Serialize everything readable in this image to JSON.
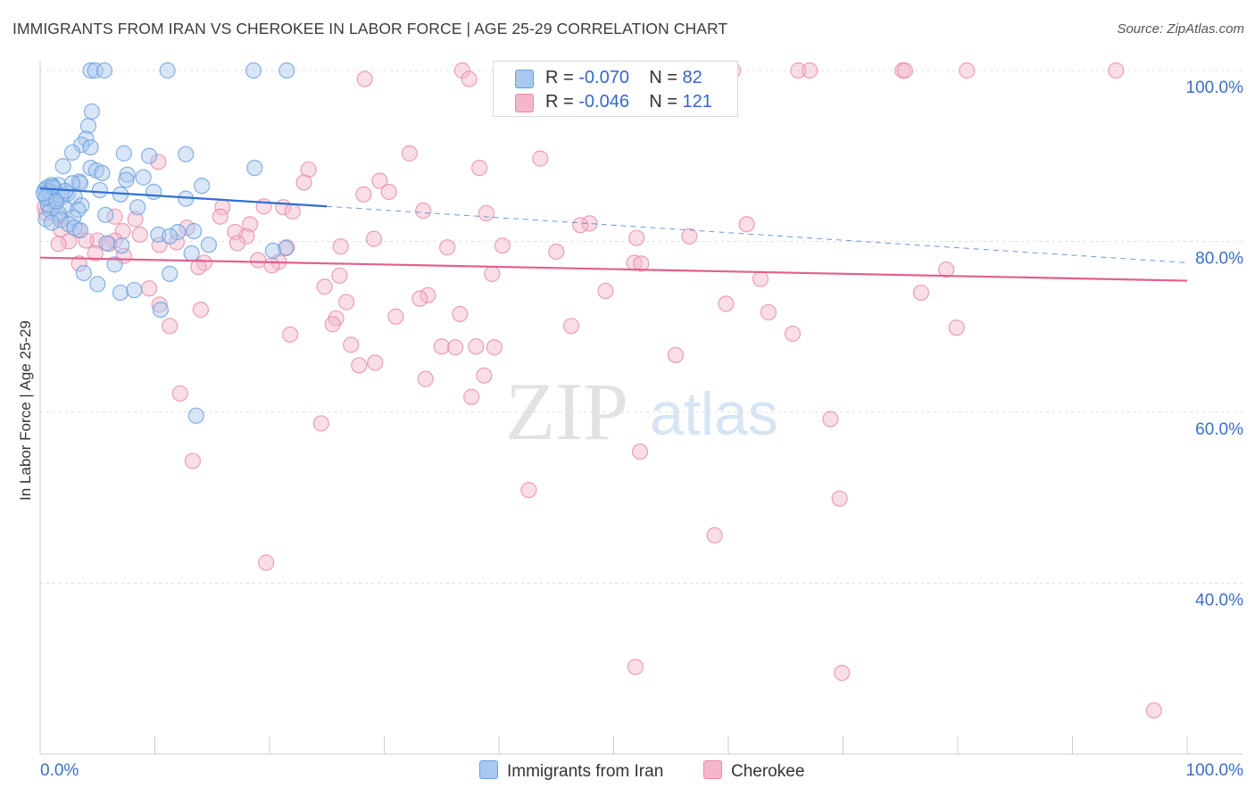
{
  "title": "IMMIGRANTS FROM IRAN VS CHEROKEE IN LABOR FORCE | AGE 25-29 CORRELATION CHART",
  "source": "Source: ZipAtlas.com",
  "watermark": {
    "zip": "ZIP",
    "atlas": "atlas"
  },
  "legend": {
    "series1": {
      "r_label": "R = ",
      "r_value": "-0.070",
      "n_label": "N = ",
      "n_value": "82"
    },
    "series2": {
      "r_label": "R = ",
      "r_value": "-0.046",
      "n_label": "N = ",
      "n_value": "121"
    }
  },
  "bottom_legend": {
    "series1": "Immigrants from Iran",
    "series2": "Cherokee"
  },
  "colors": {
    "blue_fill": "#a8c8f0",
    "blue_stroke": "#6a9fdc",
    "blue_line": "#2f6fcf",
    "pink_fill": "#f5b6c9",
    "pink_stroke": "#e78aa8",
    "pink_line": "#e2608f",
    "axis_label": "#3a6fc8",
    "grid": "#dcdcdc"
  },
  "chart_data": {
    "type": "scatter",
    "title": "IMMIGRANTS FROM IRAN VS CHEROKEE IN LABOR FORCE | AGE 25-29 CORRELATION CHART",
    "xlabel": "",
    "ylabel": "In Labor Force | Age 25-29",
    "xlim": [
      0,
      100
    ],
    "ylim": [
      20,
      103
    ],
    "x_tick_labels": [
      {
        "value": 0,
        "label": "0.0%"
      },
      {
        "value": 100,
        "label": "100.0%"
      }
    ],
    "y_tick_labels": [
      {
        "value": 100,
        "label": "100.0%"
      },
      {
        "value": 80,
        "label": "80.0%"
      },
      {
        "value": 60,
        "label": "60.0%"
      },
      {
        "value": 40,
        "label": "40.0%"
      }
    ],
    "series": [
      {
        "name": "Immigrants from Iran",
        "color": "#a8c8f0",
        "trend": {
          "x": [
            0,
            25
          ],
          "y": [
            86.2,
            84.1
          ],
          "dashed_to": [
            100,
            77.5
          ]
        },
        "points": [
          [
            4.4,
            100
          ],
          [
            4.8,
            100
          ],
          [
            5.6,
            100
          ],
          [
            11.1,
            100
          ],
          [
            18.6,
            100
          ],
          [
            21.5,
            100
          ],
          [
            4.5,
            95.2
          ],
          [
            4.2,
            93.5
          ],
          [
            4.0,
            92.0
          ],
          [
            3.6,
            91.3
          ],
          [
            4.4,
            91.0
          ],
          [
            2.8,
            90.4
          ],
          [
            7.3,
            90.3
          ],
          [
            9.5,
            90.0
          ],
          [
            12.7,
            90.2
          ],
          [
            2.0,
            88.8
          ],
          [
            4.4,
            88.6
          ],
          [
            4.9,
            88.3
          ],
          [
            18.7,
            88.6
          ],
          [
            5.4,
            88.0
          ],
          [
            7.6,
            87.8
          ],
          [
            9.0,
            87.5
          ],
          [
            7.5,
            87.2
          ],
          [
            3.4,
            87.0
          ],
          [
            3.5,
            86.8
          ],
          [
            1.6,
            86.6
          ],
          [
            2.8,
            86.8
          ],
          [
            1.0,
            86.6
          ],
          [
            14.1,
            86.5
          ],
          [
            0.6,
            86.3
          ],
          [
            1.2,
            86.2
          ],
          [
            0.4,
            86.0
          ],
          [
            0.8,
            85.8
          ],
          [
            2.4,
            85.6
          ],
          [
            1.5,
            85.5
          ],
          [
            0.5,
            85.3
          ],
          [
            1.9,
            85.2
          ],
          [
            0.9,
            85.0
          ],
          [
            3.0,
            85.2
          ],
          [
            5.2,
            86.0
          ],
          [
            7.0,
            85.5
          ],
          [
            9.9,
            85.8
          ],
          [
            12.7,
            85.0
          ],
          [
            1.3,
            84.3
          ],
          [
            0.7,
            84.2
          ],
          [
            3.6,
            84.2
          ],
          [
            8.5,
            84.0
          ],
          [
            2.2,
            83.8
          ],
          [
            0.9,
            83.6
          ],
          [
            3.3,
            83.7
          ],
          [
            1.6,
            83.3
          ],
          [
            5.7,
            83.1
          ],
          [
            2.9,
            82.8
          ],
          [
            0.5,
            82.6
          ],
          [
            1.8,
            82.5
          ],
          [
            1.0,
            82.2
          ],
          [
            2.5,
            82.0
          ],
          [
            3.0,
            81.6
          ],
          [
            3.5,
            81.3
          ],
          [
            13.4,
            81.2
          ],
          [
            12.0,
            81.1
          ],
          [
            10.3,
            80.8
          ],
          [
            11.3,
            80.6
          ],
          [
            5.8,
            79.8
          ],
          [
            14.7,
            79.6
          ],
          [
            7.1,
            79.5
          ],
          [
            21.4,
            79.2
          ],
          [
            20.3,
            78.9
          ],
          [
            13.2,
            78.6
          ],
          [
            6.5,
            77.3
          ],
          [
            3.8,
            76.3
          ],
          [
            11.3,
            76.2
          ],
          [
            5.0,
            75.0
          ],
          [
            7.0,
            74.0
          ],
          [
            8.2,
            74.3
          ],
          [
            10.5,
            72.0
          ],
          [
            13.6,
            59.6
          ],
          [
            0.5,
            85.1
          ],
          [
            1.4,
            84.7
          ],
          [
            2.2,
            85.9
          ],
          [
            1.1,
            86.4
          ],
          [
            0.3,
            85.6
          ]
        ]
      },
      {
        "name": "Cherokee",
        "color": "#f5b6c9",
        "trend": {
          "x": [
            0,
            100
          ],
          "y": [
            78.1,
            75.4
          ]
        },
        "points": [
          [
            36.8,
            100
          ],
          [
            53.3,
            100
          ],
          [
            53.6,
            100
          ],
          [
            59.2,
            100
          ],
          [
            60.4,
            100
          ],
          [
            66.1,
            100
          ],
          [
            67.1,
            100
          ],
          [
            75.2,
            100
          ],
          [
            75.4,
            100
          ],
          [
            80.8,
            100
          ],
          [
            93.8,
            100
          ],
          [
            53.8,
            100
          ],
          [
            37.4,
            99
          ],
          [
            28.3,
            99
          ],
          [
            46.6,
            98.9
          ],
          [
            32.2,
            90.3
          ],
          [
            43.6,
            89.7
          ],
          [
            10.3,
            89.3
          ],
          [
            38.3,
            88.6
          ],
          [
            23.4,
            88.4
          ],
          [
            23.0,
            86.9
          ],
          [
            29.6,
            87.1
          ],
          [
            28.2,
            85.5
          ],
          [
            30.4,
            85.8
          ],
          [
            19.5,
            84.1
          ],
          [
            21.2,
            84.0
          ],
          [
            33.4,
            83.6
          ],
          [
            15.9,
            84.0
          ],
          [
            22.0,
            83.5
          ],
          [
            38.9,
            83.3
          ],
          [
            8.3,
            82.6
          ],
          [
            6.5,
            82.9
          ],
          [
            0.5,
            83.3
          ],
          [
            1.6,
            82.9
          ],
          [
            15.7,
            82.9
          ],
          [
            18.3,
            82.0
          ],
          [
            47.9,
            82.1
          ],
          [
            47.1,
            81.9
          ],
          [
            61.6,
            82.0
          ],
          [
            12.8,
            81.6
          ],
          [
            7.2,
            81.2
          ],
          [
            1.8,
            81.4
          ],
          [
            3.3,
            81.3
          ],
          [
            17.0,
            81.1
          ],
          [
            8.7,
            80.8
          ],
          [
            5.0,
            80.1
          ],
          [
            56.6,
            80.6
          ],
          [
            6.5,
            80.1
          ],
          [
            29.1,
            80.3
          ],
          [
            52.0,
            80.4
          ],
          [
            18.0,
            80.6
          ],
          [
            2.5,
            80.0
          ],
          [
            1.6,
            79.7
          ],
          [
            4.0,
            80.1
          ],
          [
            11.9,
            79.9
          ],
          [
            17.2,
            79.8
          ],
          [
            40.3,
            79.5
          ],
          [
            26.2,
            79.4
          ],
          [
            35.5,
            79.3
          ],
          [
            21.5,
            79.3
          ],
          [
            10.4,
            79.6
          ],
          [
            6.0,
            79.7
          ],
          [
            45.0,
            78.8
          ],
          [
            4.8,
            78.6
          ],
          [
            7.3,
            78.3
          ],
          [
            19.0,
            77.8
          ],
          [
            14.3,
            77.5
          ],
          [
            20.8,
            77.6
          ],
          [
            51.8,
            77.5
          ],
          [
            52.4,
            77.4
          ],
          [
            3.4,
            77.4
          ],
          [
            20.2,
            77.2
          ],
          [
            13.8,
            77.0
          ],
          [
            79.0,
            76.7
          ],
          [
            39.4,
            76.2
          ],
          [
            26.1,
            76.0
          ],
          [
            62.8,
            75.6
          ],
          [
            24.8,
            74.7
          ],
          [
            0.4,
            84.0
          ],
          [
            9.5,
            74.5
          ],
          [
            49.3,
            74.2
          ],
          [
            76.8,
            74.0
          ],
          [
            33.8,
            73.7
          ],
          [
            33.1,
            73.3
          ],
          [
            26.7,
            72.9
          ],
          [
            59.8,
            72.7
          ],
          [
            10.4,
            72.6
          ],
          [
            14.0,
            72.0
          ],
          [
            63.5,
            71.7
          ],
          [
            36.6,
            71.5
          ],
          [
            31.0,
            71.2
          ],
          [
            25.8,
            71.0
          ],
          [
            25.5,
            70.3
          ],
          [
            11.3,
            70.1
          ],
          [
            46.3,
            70.1
          ],
          [
            79.9,
            69.9
          ],
          [
            65.6,
            69.2
          ],
          [
            21.8,
            69.1
          ],
          [
            27.1,
            67.9
          ],
          [
            38.0,
            67.7
          ],
          [
            35.0,
            67.7
          ],
          [
            39.6,
            67.6
          ],
          [
            36.2,
            67.6
          ],
          [
            55.4,
            66.7
          ],
          [
            27.8,
            65.5
          ],
          [
            29.2,
            65.8
          ],
          [
            38.7,
            64.3
          ],
          [
            33.6,
            63.9
          ],
          [
            12.2,
            62.2
          ],
          [
            37.6,
            61.8
          ],
          [
            68.9,
            59.2
          ],
          [
            24.5,
            58.7
          ],
          [
            52.3,
            55.4
          ],
          [
            13.3,
            54.3
          ],
          [
            42.6,
            50.9
          ],
          [
            69.7,
            49.9
          ],
          [
            58.8,
            45.6
          ],
          [
            19.7,
            42.4
          ],
          [
            51.9,
            30.2
          ],
          [
            69.9,
            29.5
          ],
          [
            97.1,
            25.1
          ]
        ]
      }
    ]
  }
}
